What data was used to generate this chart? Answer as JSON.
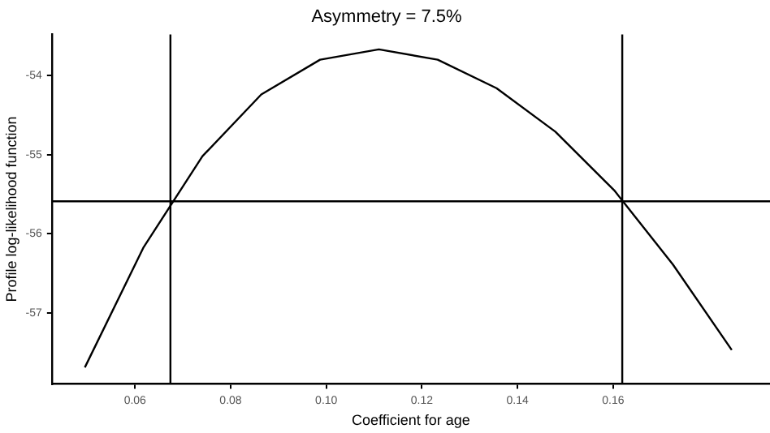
{
  "chart_data": {
    "type": "line",
    "title": "Asymmetry = 7.5%",
    "xlabel": "Coefficient for age",
    "ylabel": "Profile log-likelihood function",
    "x": [
      0.0495,
      0.0618,
      0.0741,
      0.0864,
      0.0987,
      0.111,
      0.1233,
      0.1356,
      0.1479,
      0.1602,
      0.1725,
      0.1848
    ],
    "series": [
      {
        "color": "#000000",
        "values": [
          -57.69,
          -56.17,
          -55.02,
          -54.24,
          -53.8,
          -53.67,
          -53.8,
          -54.16,
          -54.71,
          -55.45,
          -56.39,
          -57.47
        ]
      }
    ],
    "xlim": [
      0.0426,
      0.1928
    ],
    "ylim": [
      -57.9,
      -53.48
    ],
    "xticks": [
      {
        "value": 0.06,
        "label": "0.06"
      },
      {
        "value": 0.08,
        "label": "0.08"
      },
      {
        "value": 0.1,
        "label": "0.10"
      },
      {
        "value": 0.12,
        "label": "0.12"
      },
      {
        "value": 0.14,
        "label": "0.14"
      },
      {
        "value": 0.16,
        "label": "0.16"
      }
    ],
    "yticks": [
      -57,
      -56,
      -55,
      -54
    ],
    "ref_lines": [
      {
        "axis": "y",
        "value": -55.59,
        "color": "#000000"
      },
      {
        "axis": "x",
        "value": 0.0674,
        "color": "#000000"
      },
      {
        "axis": "x",
        "value": 0.1619,
        "color": "#000000"
      }
    ],
    "grid": false,
    "legend": false,
    "marker": "none",
    "line_style": "solid"
  }
}
